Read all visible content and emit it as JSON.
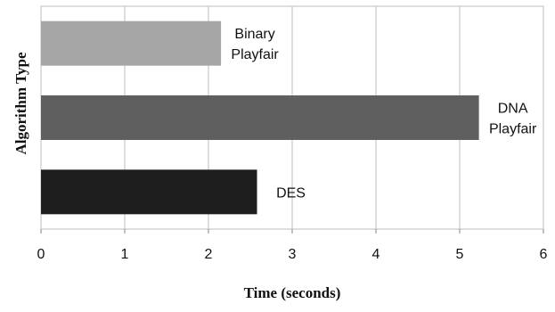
{
  "chart_data": {
    "type": "bar",
    "orientation": "horizontal",
    "categories": [
      "Binary Playfair",
      "DNA Playfair",
      "DES"
    ],
    "category_label_lines": [
      [
        "Binary",
        "Playfair"
      ],
      [
        "DNA",
        "Playfair"
      ],
      [
        "DES"
      ]
    ],
    "values": [
      2.15,
      5.23,
      2.58
    ],
    "bar_colors": [
      "#a6a6a6",
      "#5f5f5f",
      "#1e1e1e"
    ],
    "xlabel": "Time (seconds)",
    "ylabel": "Algorithm Type",
    "xlim": [
      0,
      6
    ],
    "xticks": [
      0,
      1,
      2,
      3,
      4,
      5,
      6
    ],
    "grid": "vertical",
    "legend": "none"
  }
}
